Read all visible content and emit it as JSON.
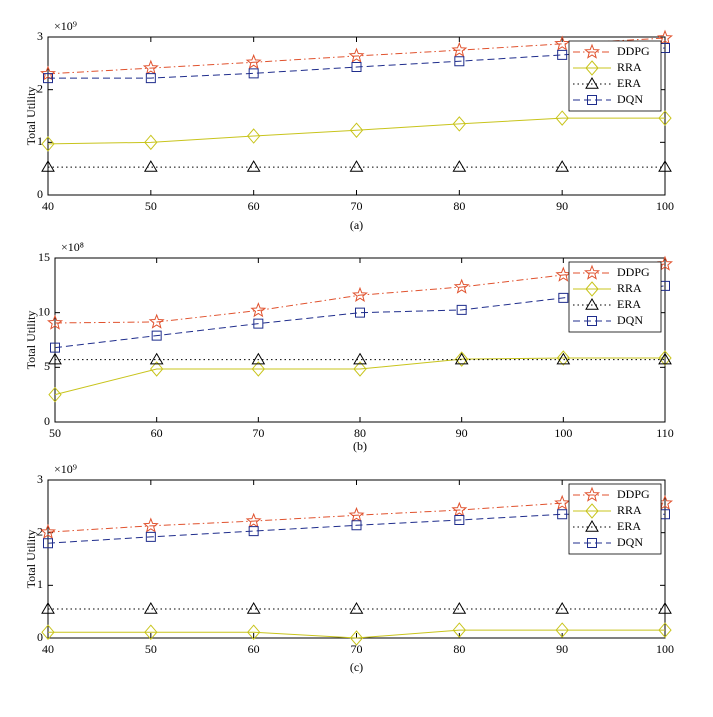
{
  "chart_data": [
    {
      "type": "line",
      "caption": "(a)",
      "ylabel": "Total Utility",
      "exponent_label": "×10⁹",
      "x": [
        40,
        50,
        60,
        70,
        80,
        90,
        100
      ],
      "xlim": [
        40,
        100
      ],
      "xticks": [
        40,
        50,
        60,
        70,
        80,
        90,
        100
      ],
      "ylim": [
        0,
        3
      ],
      "yticks": [
        0,
        1,
        2,
        3
      ],
      "legend": "upper right",
      "series": [
        {
          "name": "DDPG",
          "color": "#e0522e",
          "line": "dashdot",
          "marker": "star",
          "values": [
            2.3,
            2.41,
            2.52,
            2.64,
            2.75,
            2.87,
            2.98
          ]
        },
        {
          "name": "RRA",
          "color": "#c8c41c",
          "line": "solid",
          "marker": "diamond",
          "values": [
            0.97,
            1.0,
            1.12,
            1.23,
            1.35,
            1.46,
            1.46
          ]
        },
        {
          "name": "ERA",
          "color": "#000000",
          "line": "dotted",
          "marker": "triangle",
          "values": [
            0.53,
            0.53,
            0.53,
            0.53,
            0.53,
            0.53,
            0.53
          ]
        },
        {
          "name": "DQN",
          "color": "#1f2d8c",
          "line": "dashed",
          "marker": "square",
          "values": [
            2.22,
            2.22,
            2.31,
            2.43,
            2.54,
            2.66,
            2.79
          ]
        }
      ]
    },
    {
      "type": "line",
      "caption": "(b)",
      "ylabel": "Total Utility",
      "exponent_label": "×10⁸",
      "x": [
        50,
        60,
        70,
        80,
        90,
        100,
        110
      ],
      "xlim": [
        50,
        110
      ],
      "xticks": [
        50,
        60,
        70,
        80,
        90,
        100,
        110
      ],
      "ylim": [
        0,
        15
      ],
      "yticks": [
        0,
        5,
        10,
        15
      ],
      "legend": "upper right",
      "series": [
        {
          "name": "DDPG",
          "color": "#e0522e",
          "line": "dashdot",
          "marker": "star",
          "values": [
            9.06,
            9.15,
            10.2,
            11.6,
            12.35,
            13.45,
            14.45
          ]
        },
        {
          "name": "RRA",
          "color": "#c8c41c",
          "line": "solid",
          "marker": "diamond",
          "values": [
            2.5,
            4.85,
            4.85,
            4.85,
            5.75,
            5.85,
            5.85
          ]
        },
        {
          "name": "ERA",
          "color": "#000000",
          "line": "dotted",
          "marker": "triangle",
          "values": [
            5.7,
            5.7,
            5.7,
            5.7,
            5.7,
            5.7,
            5.7
          ]
        },
        {
          "name": "DQN",
          "color": "#1f2d8c",
          "line": "dashed",
          "marker": "square",
          "values": [
            6.8,
            7.9,
            9.0,
            10.0,
            10.25,
            11.35,
            12.45
          ]
        }
      ]
    },
    {
      "type": "line",
      "caption": "(c)",
      "ylabel": "Total Utility",
      "exponent_label": "×10⁹",
      "x": [
        40,
        50,
        60,
        70,
        80,
        90,
        100
      ],
      "xlim": [
        40,
        100
      ],
      "xticks": [
        40,
        50,
        60,
        70,
        80,
        90,
        100
      ],
      "ylim": [
        0,
        3
      ],
      "yticks": [
        0,
        1,
        2,
        3
      ],
      "legend": "upper right",
      "series": [
        {
          "name": "DDPG",
          "color": "#e0522e",
          "line": "dashdot",
          "marker": "star",
          "values": [
            2.01,
            2.13,
            2.22,
            2.33,
            2.43,
            2.56,
            2.56
          ]
        },
        {
          "name": "RRA",
          "color": "#c8c41c",
          "line": "solid",
          "marker": "diamond",
          "values": [
            0.11,
            0.11,
            0.11,
            0,
            0.15,
            0.15,
            0.15
          ]
        },
        {
          "name": "ERA",
          "color": "#000000",
          "line": "dotted",
          "marker": "triangle",
          "values": [
            0.55,
            0.55,
            0.55,
            0.55,
            0.55,
            0.55,
            0.55
          ]
        },
        {
          "name": "DQN",
          "color": "#1f2d8c",
          "line": "dashed",
          "marker": "square",
          "values": [
            1.8,
            1.92,
            2.03,
            2.14,
            2.24,
            2.35,
            2.35
          ]
        }
      ]
    }
  ]
}
